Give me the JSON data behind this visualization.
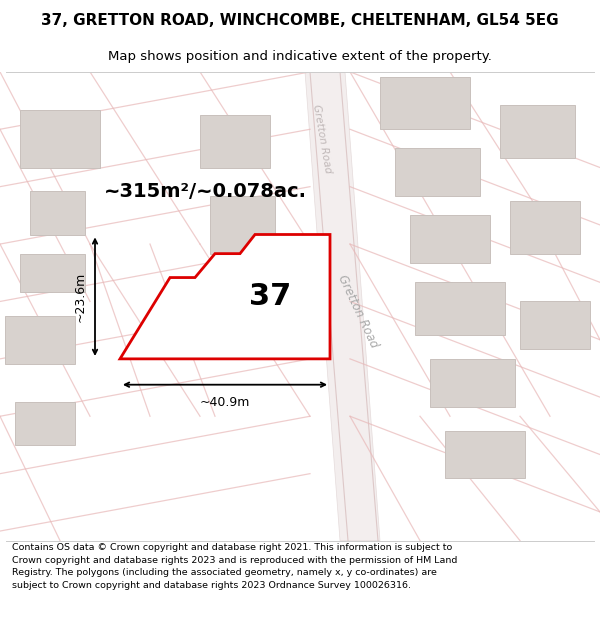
{
  "title_line1": "37, GRETTON ROAD, WINCHCOMBE, CHELTENHAM, GL54 5EG",
  "title_line2": "Map shows position and indicative extent of the property.",
  "area_label": "~315m²/~0.078ac.",
  "number_label": "37",
  "width_label": "~40.9m",
  "height_label": "~23.6m",
  "footer_text": "Contains OS data © Crown copyright and database right 2021. This information is subject to Crown copyright and database rights 2023 and is reproduced with the permission of HM Land Registry. The polygons (including the associated geometry, namely x, y co-ordinates) are subject to Crown copyright and database rights 2023 Ordnance Survey 100026316.",
  "map_bg": "#f5eeee",
  "road_band_color": "#ede8e8",
  "road_line_color": "#e8b8b8",
  "building_color": "#d8d2ce",
  "building_edge": "#c8c0bc",
  "property_fill": "#ffffff",
  "property_edge": "#dd0000",
  "road_label_color": "#aaaaaa",
  "title_fontsize": 11,
  "subtitle_fontsize": 9.5,
  "footer_fontsize": 6.8,
  "road_band_alpha": 0.6,
  "road_line_lw": 0.9
}
